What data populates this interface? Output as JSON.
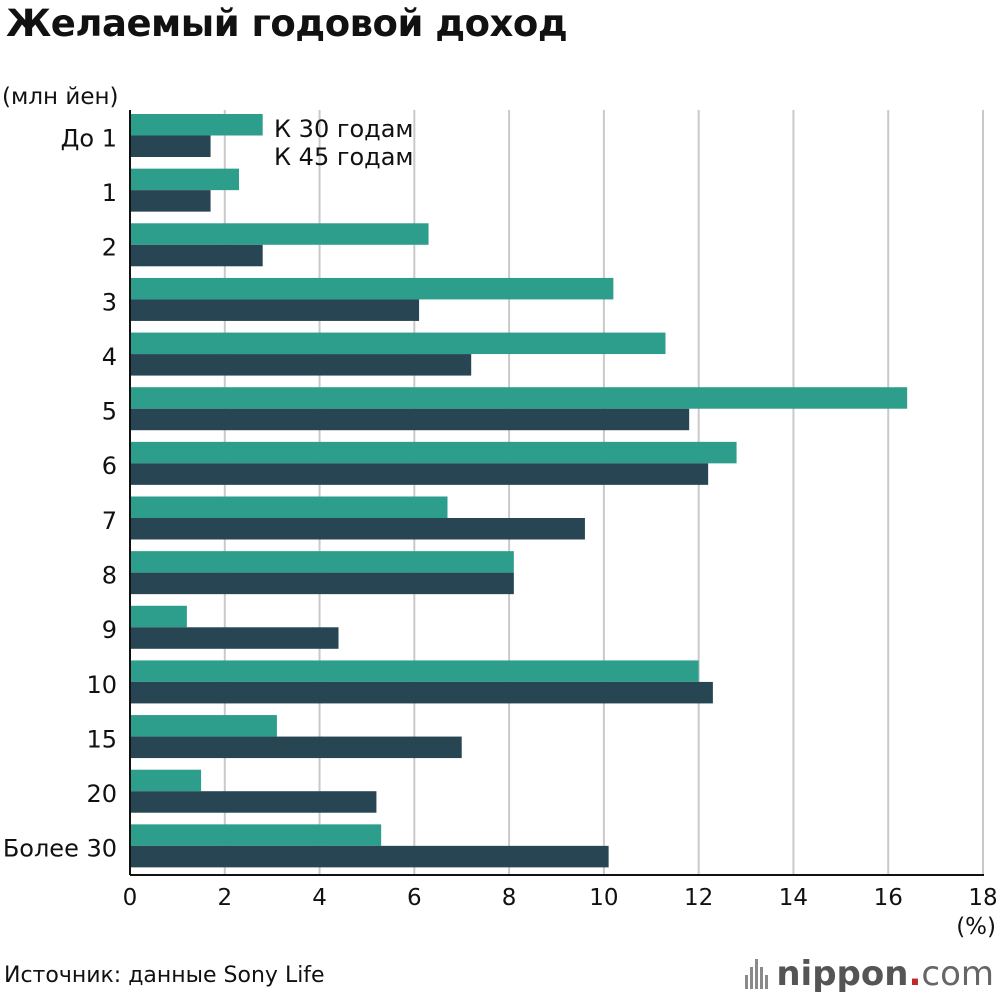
{
  "title": "Желаемый годовой доход",
  "source": "Источник: данные Sony Life",
  "logo": {
    "text_main": "nippon",
    "text_dot": ".",
    "text_suffix": "com",
    "icon": "nippon-bars-icon"
  },
  "colors": {
    "series_30": "#2e9e8c",
    "series_45": "#274552",
    "grid": "#c9c9c9",
    "axis": "#111111"
  },
  "chart_data": {
    "type": "bar",
    "orientation": "horizontal",
    "title": "Желаемый годовой доход",
    "ylabel": "(млн йен)",
    "xlabel": "(%)",
    "xlim": [
      0,
      18
    ],
    "xticks": [
      0,
      2,
      4,
      6,
      8,
      10,
      12,
      14,
      16,
      18
    ],
    "grid": true,
    "legend_position": "top-left",
    "categories": [
      "До 1",
      "1",
      "2",
      "3",
      "4",
      "5",
      "6",
      "7",
      "8",
      "9",
      "10",
      "15",
      "20",
      "Более 30"
    ],
    "series": [
      {
        "name": "К 30 годам",
        "values": [
          2.8,
          2.3,
          6.3,
          10.2,
          11.3,
          16.4,
          12.8,
          6.7,
          8.1,
          1.2,
          12.0,
          3.1,
          1.5,
          5.3
        ]
      },
      {
        "name": "К 45 годам",
        "values": [
          1.7,
          1.7,
          2.8,
          6.1,
          7.2,
          11.8,
          12.2,
          9.6,
          8.1,
          4.4,
          12.3,
          7.0,
          5.2,
          10.1
        ]
      }
    ]
  }
}
